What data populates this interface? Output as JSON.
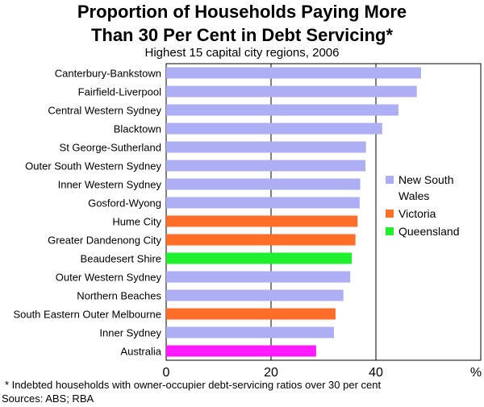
{
  "chart_data": {
    "type": "bar",
    "orientation": "horizontal",
    "title_line1": "Proportion of Households Paying More",
    "title_line2": "Than 30 Per Cent in Debt Servicing*",
    "subtitle": "Highest 15 capital city regions, 2006",
    "xlabel": "%",
    "xlim": [
      0,
      60
    ],
    "xticks": [
      0,
      20,
      40
    ],
    "grid": true,
    "legend_position": "right",
    "categories": [
      "Canterbury-Bankstown",
      "Fairfield-Liverpool",
      "Central Western Sydney",
      "Blacktown",
      "St George-Sutherland",
      "Outer South Western Sydney",
      "Inner Western Sydney",
      "Gosford-Wyong",
      "Hume City",
      "Greater Dandenong City",
      "Beaudesert Shire",
      "Outer Western Sydney",
      "Northern Beaches",
      "South Eastern Outer Melbourne",
      "Inner Sydney",
      "Australia"
    ],
    "values": [
      48.6,
      47.8,
      44.3,
      41.2,
      38.1,
      38.0,
      37.0,
      36.9,
      36.5,
      36.1,
      35.4,
      35.1,
      33.8,
      32.3,
      32.0,
      28.6
    ],
    "groups": [
      "nsw",
      "nsw",
      "nsw",
      "nsw",
      "nsw",
      "nsw",
      "nsw",
      "nsw",
      "vic",
      "vic",
      "qld",
      "nsw",
      "nsw",
      "vic",
      "nsw",
      "aus"
    ],
    "colors": {
      "nsw": "#aeaef4",
      "vic": "#ff6e28",
      "qld": "#1fef2c",
      "aus": "#ff1aff"
    },
    "legend": [
      {
        "key": "nsw",
        "label_lines": [
          "New South",
          "Wales"
        ]
      },
      {
        "key": "vic",
        "label_lines": [
          "Victoria"
        ]
      },
      {
        "key": "qld",
        "label_lines": [
          "Queensland"
        ]
      }
    ]
  },
  "footnote": "*   Indebted households with owner-occupier debt-servicing ratios over 30 per cent",
  "sources": "Sources: ABS; RBA"
}
